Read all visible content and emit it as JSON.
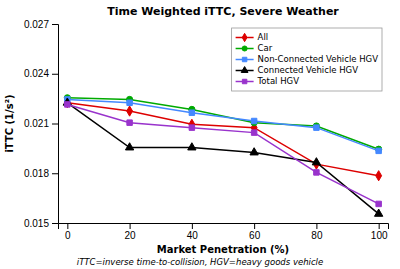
{
  "chart_data": {
    "type": "line",
    "title": "Time Weighted iTTC, Severe Weather",
    "x_label": "Market Penetration (%)",
    "y_label": "iTTC (1/s²)",
    "footnote": "iTTC=inverse time-to-collision, HGV=heavy goods vehicle",
    "x": [
      0,
      20,
      40,
      60,
      80,
      100
    ],
    "series": [
      {
        "name": "All",
        "color": "#dd0000",
        "marker": "diamond",
        "values": [
          0.02225,
          0.02175,
          0.02095,
          0.02075,
          0.01855,
          0.01785
        ]
      },
      {
        "name": "Car",
        "color": "#00aa00",
        "marker": "circle",
        "values": [
          0.02255,
          0.02245,
          0.02185,
          0.02105,
          0.02085,
          0.01945
        ]
      },
      {
        "name": "Non-Connected Vehicle HGV",
        "color": "#4488ff",
        "marker": "square",
        "values": [
          0.02245,
          0.02225,
          0.02165,
          0.02115,
          0.02075,
          0.01935
        ]
      },
      {
        "name": "Connected Vehicle HGV",
        "color": "#000000",
        "marker": "triangle",
        "values": [
          0.02225,
          0.01955,
          0.01955,
          0.01925,
          0.01865,
          0.01555
        ]
      },
      {
        "name": "Total HGV",
        "color": "#9933cc",
        "marker": "square",
        "values": [
          0.02215,
          0.02105,
          0.02075,
          0.02045,
          0.01805,
          0.01615
        ]
      }
    ],
    "xlim": [
      -3,
      103
    ],
    "ylim": [
      0.015,
      0.027
    ],
    "xticks": [
      0,
      20,
      40,
      60,
      80,
      100
    ],
    "yticks": [
      0.015,
      0.018,
      0.021,
      0.024,
      0.027
    ],
    "legend": "upper right",
    "grid": false
  }
}
